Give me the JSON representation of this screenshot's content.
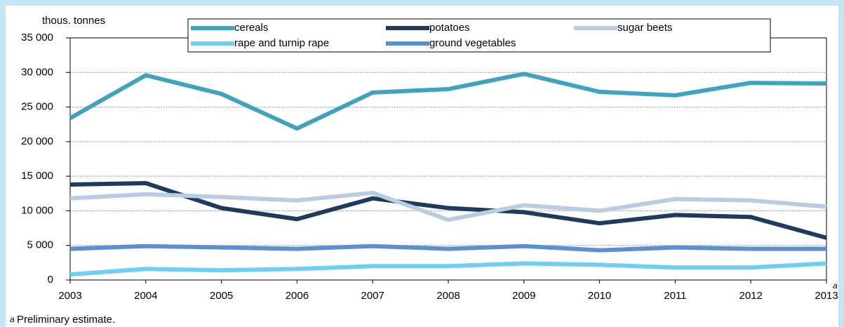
{
  "chart_data": {
    "type": "line",
    "y_axis_label": "thous. tonnes",
    "categories": [
      "2003",
      "2004",
      "2005",
      "2006",
      "2007",
      "2008",
      "2009",
      "2010",
      "2011",
      "2012",
      "2013"
    ],
    "x_annotation": "a",
    "footnote": {
      "marker": "a",
      "text": "Preliminary estimate."
    },
    "series": [
      {
        "name": "cereals",
        "color": "#3fa3bf",
        "values": [
          23400,
          29600,
          26900,
          21900,
          27100,
          27600,
          29800,
          27200,
          26700,
          28500,
          28400
        ]
      },
      {
        "name": "potatoes",
        "color": "#1e3a5c",
        "values": [
          13800,
          14000,
          10400,
          8800,
          11800,
          10400,
          9800,
          8200,
          9400,
          9100,
          6100
        ]
      },
      {
        "name": "sugar beets",
        "color": "#b9cde2",
        "values": [
          11800,
          12400,
          12000,
          11500,
          12600,
          8700,
          10800,
          10000,
          11700,
          11500,
          10600
        ]
      },
      {
        "name": "rape and turnip rape",
        "color": "#6dcff5",
        "values": [
          800,
          1600,
          1400,
          1600,
          2000,
          2000,
          2400,
          2200,
          1800,
          1800,
          2400
        ]
      },
      {
        "name": "ground vegetables",
        "color": "#5a8fd3",
        "values": [
          4500,
          4900,
          4700,
          4500,
          4900,
          4500,
          4900,
          4300,
          4700,
          4500,
          4500
        ]
      }
    ],
    "ylim": [
      0,
      35000
    ],
    "yticks": [
      0,
      {
        "value": 5000,
        "label": "5 000"
      },
      {
        "value": 10000,
        "label": "10 000"
      },
      {
        "value": 15000,
        "label": "15 000"
      },
      {
        "value": 20000,
        "label": "20 000"
      },
      {
        "value": 25000,
        "label": "25 000"
      },
      {
        "value": 30000,
        "label": "30 000"
      },
      {
        "value": 35000,
        "label": "35 000"
      }
    ],
    "grid": true
  }
}
